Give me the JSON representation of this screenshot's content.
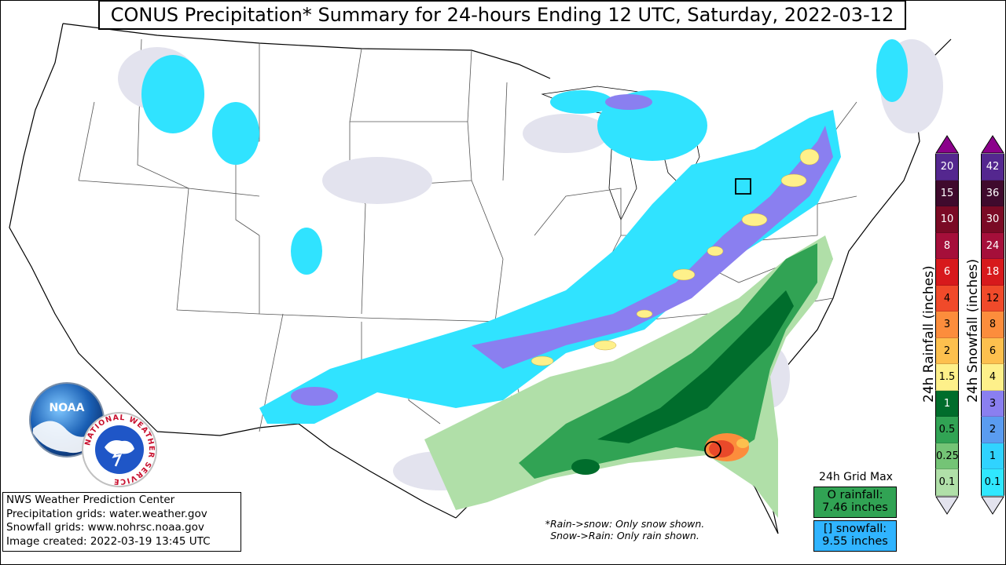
{
  "title": "CONUS Precipitation* Summary for 24-hours Ending 12 UTC, Saturday, 2022-03-12",
  "info": {
    "line1": "NWS Weather Prediction Center",
    "line2": "Precipitation grids: water.weather.gov",
    "line3": "Snowfall grids: www.nohrsc.noaa.gov",
    "line4": "Image created: 2022-03-19 13:45 UTC"
  },
  "note": {
    "line1": "*Rain->snow: Only snow shown.",
    "line2": "Snow->Rain: Only rain shown."
  },
  "grid_max": {
    "label": "24h Grid Max",
    "rain_label": "O rainfall:",
    "rain_value": "7.46 inches",
    "snow_label": "[] snowfall:",
    "snow_value": "9.55 inches"
  },
  "legend_rain": {
    "title": "24h Rainfall (inches)",
    "levels": [
      {
        "label": "20",
        "color": "#54278f"
      },
      {
        "label": "15",
        "color": "#3f0a2d"
      },
      {
        "label": "10",
        "color": "#7a0a25"
      },
      {
        "label": "8",
        "color": "#a50f3a"
      },
      {
        "label": "6",
        "color": "#d7191c"
      },
      {
        "label": "4",
        "color": "#f04a2a"
      },
      {
        "label": "3",
        "color": "#fc8d3c"
      },
      {
        "label": "2",
        "color": "#fdc04e"
      },
      {
        "label": "1.5",
        "color": "#fef08a"
      },
      {
        "label": "1",
        "color": "#006d2c"
      },
      {
        "label": "0.5",
        "color": "#31a354"
      },
      {
        "label": "0.25",
        "color": "#74c476"
      },
      {
        "label": "0.1",
        "color": "#b0dfa8"
      }
    ]
  },
  "legend_snow": {
    "title": "24h Snowfall (inches)",
    "levels": [
      {
        "label": "42",
        "color": "#54278f"
      },
      {
        "label": "36",
        "color": "#3f0a2d"
      },
      {
        "label": "30",
        "color": "#7a0a25"
      },
      {
        "label": "24",
        "color": "#a50f3a"
      },
      {
        "label": "18",
        "color": "#d7191c"
      },
      {
        "label": "12",
        "color": "#f04a2a"
      },
      {
        "label": "8",
        "color": "#fc8d3c"
      },
      {
        "label": "6",
        "color": "#fdc04e"
      },
      {
        "label": "4",
        "color": "#fef08a"
      },
      {
        "label": "3",
        "color": "#8a7ff0"
      },
      {
        "label": "2",
        "color": "#5a9cf0"
      },
      {
        "label": "1",
        "color": "#30d3ff"
      },
      {
        "label": "0.1",
        "color": "#30e8ff"
      }
    ]
  },
  "colors": {
    "snow_trace": "#e3e3ee",
    "snow_light": "#30e3ff",
    "snow_mid": "#6f9cf5",
    "snow_heavy": "#8a6ff0",
    "snow_yellow": "#fef08a",
    "rain_light": "#b0dfa8",
    "rain_mid": "#31a354",
    "rain_heavy": "#006d2c",
    "rain_orange": "#fc8d3c",
    "rain_red": "#e9492a",
    "grid_max_rain": "#31a354",
    "grid_max_snow": "#30b4ff"
  },
  "logos": {
    "noaa": "NOAA",
    "nws_ring": "NATIONAL WEATHER SERVICE"
  }
}
